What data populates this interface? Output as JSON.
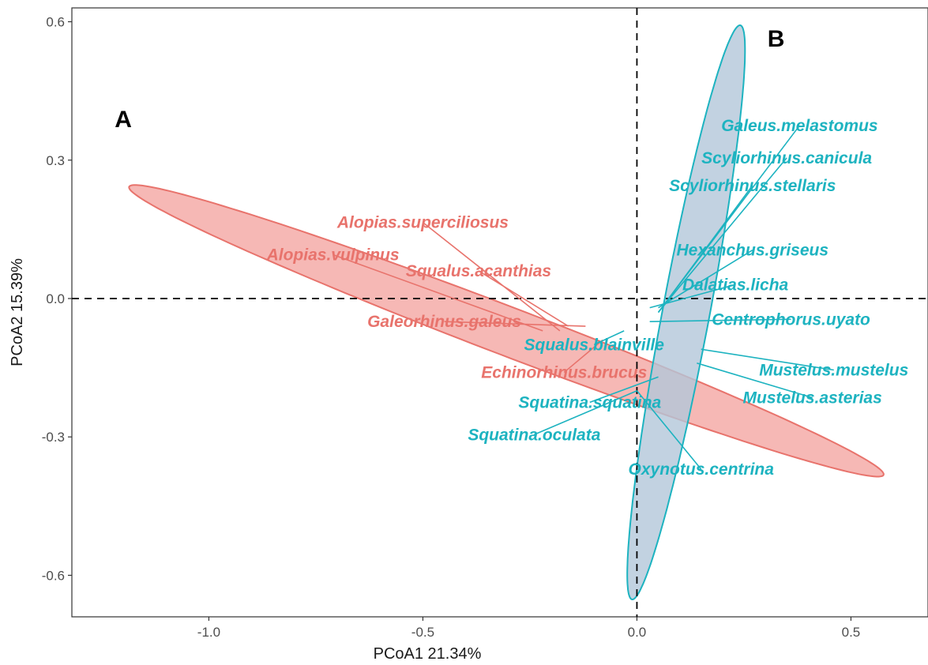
{
  "chart_data": {
    "type": "scatter",
    "xlabel": "PCoA1 21.34%",
    "ylabel": "PCoA2 15.39%",
    "xlim": [
      -1.32,
      0.68
    ],
    "ylim": [
      -0.69,
      0.63
    ],
    "x_ticks": [
      -1.0,
      -0.5,
      0.0,
      0.5
    ],
    "x_tick_labels": [
      "-1.0",
      "-0.5",
      "0.0",
      "0.5"
    ],
    "y_ticks": [
      -0.6,
      -0.3,
      0.0,
      0.3,
      0.6
    ],
    "y_tick_labels": [
      "-0.6",
      "-0.3",
      "0.0",
      "0.3",
      "0.6"
    ],
    "reference_lines": {
      "x": 0,
      "y": 0,
      "style": "dashed"
    },
    "groups": [
      {
        "name": "A",
        "color": "#e8736c",
        "fill": "#f4a6a2",
        "ellipse": {
          "center": [
            -0.305,
            -0.07
          ],
          "semi_major": 0.935,
          "semi_minor": 0.053,
          "angle_deg": -19.5
        },
        "points": [
          {
            "label": "Alopias.superciliosus",
            "x": -0.18,
            "y": -0.07,
            "lx": -0.5,
            "ly": 0.165
          },
          {
            "label": "Alopias.vulpinus",
            "x": -0.22,
            "y": -0.07,
            "lx": -0.71,
            "ly": 0.095
          },
          {
            "label": "Squalus.acanthias",
            "x": -0.16,
            "y": -0.06,
            "lx": -0.37,
            "ly": 0.06
          },
          {
            "label": "Galeorhinus.galeus",
            "x": -0.12,
            "y": -0.06,
            "lx": -0.45,
            "ly": -0.05
          },
          {
            "label": "Echinorhinus.brucus",
            "x": -0.08,
            "y": -0.09,
            "lx": -0.17,
            "ly": -0.16
          }
        ]
      },
      {
        "name": "B",
        "color": "#1db3c0",
        "fill": "#b3c7da",
        "ellipse": {
          "center": [
            0.115,
            -0.03
          ],
          "semi_major": 0.635,
          "semi_minor": 0.055,
          "angle_deg": 78.5
        },
        "points": [
          {
            "label": "Galeus.melastomus",
            "x": 0.05,
            "y": -0.03,
            "lx": 0.38,
            "ly": 0.375
          },
          {
            "label": "Scyliorhinus.canicula",
            "x": 0.05,
            "y": -0.03,
            "lx": 0.35,
            "ly": 0.305
          },
          {
            "label": "Scyliorhinus.stellaris",
            "x": 0.05,
            "y": -0.03,
            "lx": 0.27,
            "ly": 0.245
          },
          {
            "label": "Hexanchus.griseus",
            "x": 0.05,
            "y": -0.02,
            "lx": 0.27,
            "ly": 0.105
          },
          {
            "label": "Dalatias.licha",
            "x": 0.03,
            "y": -0.02,
            "lx": 0.23,
            "ly": 0.03
          },
          {
            "label": "Centrophorus.uyato",
            "x": 0.03,
            "y": -0.05,
            "lx": 0.36,
            "ly": -0.045
          },
          {
            "label": "Squalus.blainville",
            "x": -0.03,
            "y": -0.07,
            "lx": -0.1,
            "ly": -0.1
          },
          {
            "label": "Mustelus.mustelus",
            "x": 0.15,
            "y": -0.11,
            "lx": 0.46,
            "ly": -0.155
          },
          {
            "label": "Mustelus.asterias",
            "x": 0.14,
            "y": -0.14,
            "lx": 0.41,
            "ly": -0.215
          },
          {
            "label": "Squatina.squatina",
            "x": 0.05,
            "y": -0.17,
            "lx": -0.11,
            "ly": -0.225
          },
          {
            "label": "Squatina.oculata",
            "x": 0.0,
            "y": -0.2,
            "lx": -0.24,
            "ly": -0.295
          },
          {
            "label": "Oxynotus.centrina",
            "x": 0.0,
            "y": -0.2,
            "lx": 0.15,
            "ly": -0.37
          }
        ]
      }
    ],
    "group_labels": [
      {
        "text": "A",
        "x": -1.2,
        "y": 0.39
      },
      {
        "text": "B",
        "x": 0.325,
        "y": 0.565
      }
    ]
  }
}
